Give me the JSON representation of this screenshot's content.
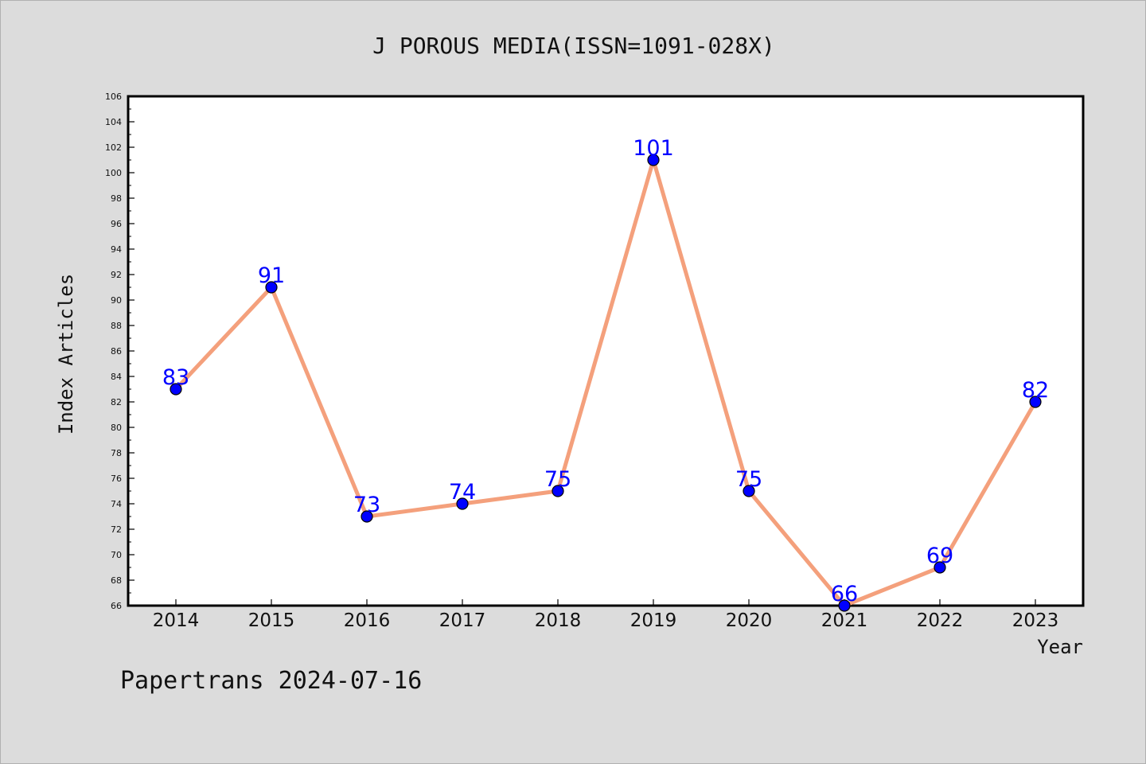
{
  "chart_data": {
    "type": "line",
    "title": "J POROUS MEDIA(ISSN=1091-028X)",
    "xlabel": "Year",
    "ylabel": "Index Articles",
    "categories": [
      "2014",
      "2015",
      "2016",
      "2017",
      "2018",
      "2019",
      "2020",
      "2021",
      "2022",
      "2023"
    ],
    "series": [
      {
        "values": [
          83,
          91,
          73,
          74,
          75,
          101,
          75,
          66,
          69,
          82
        ]
      }
    ],
    "ylim": [
      66,
      106
    ],
    "yticks": [
      "66",
      "68",
      "70",
      "72",
      "74",
      "76",
      "78",
      "80",
      "82",
      "84",
      "86",
      "88",
      "90",
      "92",
      "94",
      "96",
      "98",
      "100",
      "102",
      "104",
      "106"
    ],
    "grid": false,
    "colors": {
      "line": "#f4a07c",
      "marker": "#0000ff",
      "data_label": "#0000ff",
      "background": "#dcdcdc",
      "plot_area": "#ffffff"
    }
  },
  "footer": {
    "text": "Papertrans 2024-07-16"
  }
}
